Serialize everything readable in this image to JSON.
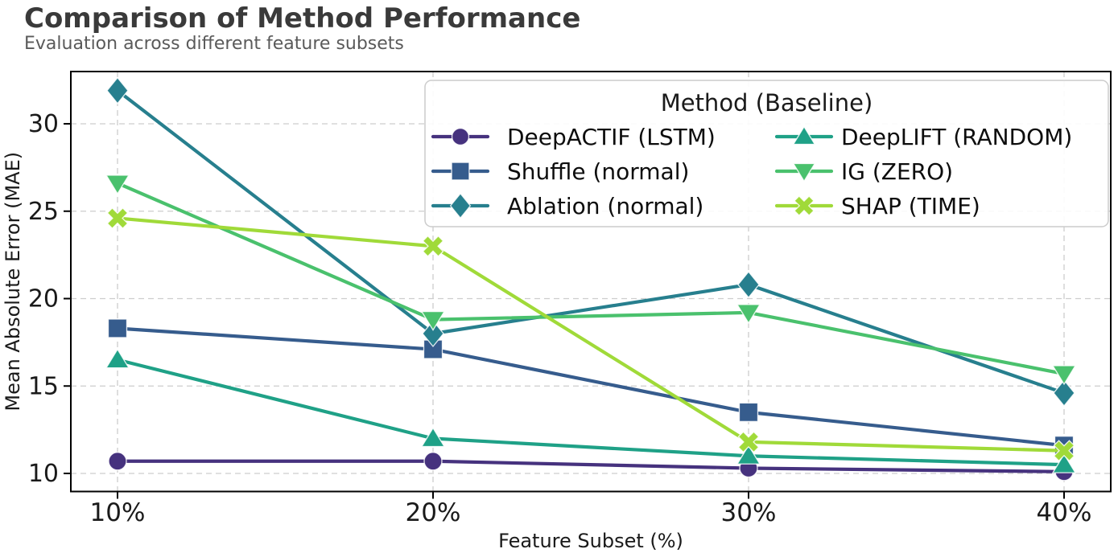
{
  "header": {
    "title": "Comparison of Method Performance",
    "subtitle": "Evaluation across different feature subsets"
  },
  "chart_data": {
    "type": "line",
    "title": "Comparison of Method Performance",
    "subtitle": "Evaluation across different feature subsets",
    "xlabel": "Feature Subset (%)",
    "ylabel": "Mean Absolute Error (MAE)",
    "categories": [
      "10%",
      "20%",
      "30%",
      "40%"
    ],
    "yticks": [
      10,
      15,
      20,
      25,
      30
    ],
    "ylim": [
      9.0,
      33.0
    ],
    "grid": true,
    "grid_style": "dashed",
    "legend": {
      "title": "Method (Baseline)",
      "position": "upper-right",
      "columns": 2
    },
    "series": [
      {
        "name": "DeepACTIF (LSTM)",
        "marker": "circle",
        "color": "#46327e",
        "values": [
          10.7,
          10.7,
          10.3,
          10.1
        ]
      },
      {
        "name": "Shuffle (normal)",
        "marker": "square",
        "color": "#365c8d",
        "values": [
          18.3,
          17.1,
          13.5,
          11.6
        ]
      },
      {
        "name": "Ablation (normal)",
        "marker": "diamond",
        "color": "#277f8e",
        "values": [
          31.9,
          18.0,
          20.8,
          14.6
        ]
      },
      {
        "name": "DeepLIFT (RANDOM)",
        "marker": "triangle-up",
        "color": "#1fa187",
        "values": [
          16.5,
          12.0,
          11.0,
          10.5
        ]
      },
      {
        "name": "IG (ZERO)",
        "marker": "triangle-down",
        "color": "#4ac16d",
        "values": [
          26.6,
          18.8,
          19.2,
          15.7
        ]
      },
      {
        "name": "SHAP (TIME)",
        "marker": "x",
        "color": "#a0da39",
        "values": [
          24.6,
          23.0,
          11.8,
          11.3
        ]
      }
    ]
  },
  "colors": {
    "axis_frame": "#000000",
    "grid": "#cdcdcd",
    "tick_label": "#1a1a1a",
    "legend_border": "#cccccc",
    "title_text": "#3a3a3a",
    "subtitle_text": "#5a5a5a"
  }
}
